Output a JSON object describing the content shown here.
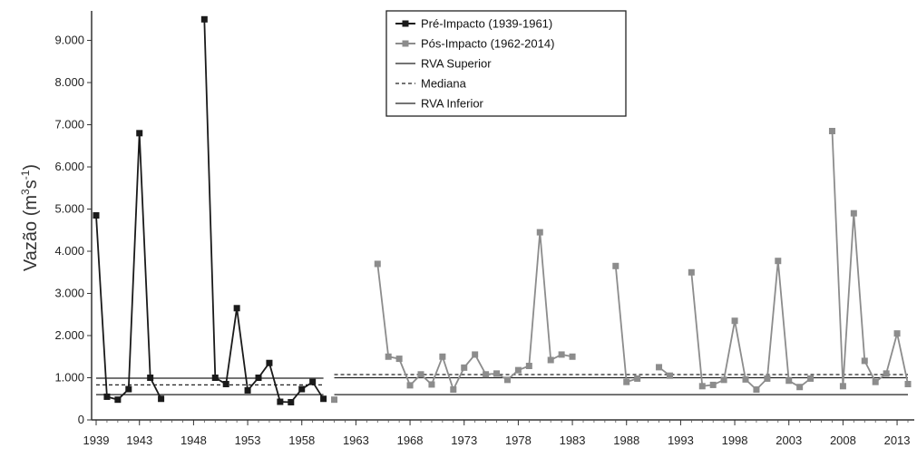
{
  "chart_data": {
    "type": "line",
    "title": "",
    "xlabel": "",
    "ylabel": "Vazão (m³s⁻¹)",
    "ylabel_parts": {
      "main": "Vazão (m",
      "sup1": "3",
      "mid": "s",
      "sup2": "-1",
      "end": ")"
    },
    "xlim": [
      1939,
      2014
    ],
    "ylim": [
      0,
      9700
    ],
    "yticks": [
      0,
      1000,
      2000,
      3000,
      4000,
      5000,
      6000,
      7000,
      8000,
      9000
    ],
    "ytick_labels": [
      "0",
      "1.000",
      "2.000",
      "3.000",
      "4.000",
      "5.000",
      "6.000",
      "7.000",
      "8.000",
      "9.000"
    ],
    "xticks": [
      1939,
      1943,
      1948,
      1953,
      1958,
      1963,
      1968,
      1973,
      1978,
      1983,
      1988,
      1993,
      1998,
      2003,
      2008,
      2013
    ],
    "legend": {
      "position": "top-center",
      "entries": [
        "Pré-Impacto (1939-1961)",
        "Pós-Impacto (1962-2014)",
        "RVA Superior",
        "Mediana",
        "RVA Inferior"
      ]
    },
    "colors": {
      "pre": "#1a1a1a",
      "pos": "#8c8c8c",
      "rva": "#222222"
    },
    "series": [
      {
        "name": "Pré-Impacto (1939-1961)",
        "segments": [
          [
            [
              1939,
              4850
            ],
            [
              1940,
              550
            ],
            [
              1941,
              480
            ],
            [
              1942,
              730
            ],
            [
              1943,
              6800
            ],
            [
              1944,
              1000
            ],
            [
              1945,
              500
            ]
          ],
          [
            [
              1949,
              9500
            ],
            [
              1950,
              1000
            ],
            [
              1951,
              850
            ],
            [
              1952,
              2650
            ],
            [
              1953,
              700
            ],
            [
              1954,
              1000
            ],
            [
              1955,
              1350
            ],
            [
              1956,
              430
            ],
            [
              1957,
              420
            ],
            [
              1958,
              730
            ],
            [
              1959,
              900
            ],
            [
              1960,
              500
            ]
          ]
        ]
      },
      {
        "name": "Pós-Impacto (1962-2014)",
        "segments": [
          [
            [
              1961,
              480
            ]
          ],
          [
            [
              1965,
              3700
            ],
            [
              1966,
              1500
            ],
            [
              1967,
              1450
            ],
            [
              1968,
              820
            ],
            [
              1969,
              1080
            ],
            [
              1970,
              840
            ],
            [
              1971,
              1500
            ],
            [
              1972,
              720
            ],
            [
              1973,
              1240
            ],
            [
              1974,
              1550
            ],
            [
              1975,
              1080
            ],
            [
              1976,
              1100
            ],
            [
              1977,
              950
            ],
            [
              1978,
              1180
            ],
            [
              1979,
              1280
            ],
            [
              1980,
              4450
            ],
            [
              1981,
              1420
            ],
            [
              1982,
              1550
            ],
            [
              1983,
              1500
            ]
          ],
          [
            [
              1987,
              3650
            ],
            [
              1988,
              900
            ],
            [
              1989,
              980
            ]
          ],
          [
            [
              1991,
              1250
            ],
            [
              1992,
              1050
            ]
          ],
          [
            [
              1994,
              3500
            ],
            [
              1995,
              800
            ],
            [
              1996,
              830
            ],
            [
              1997,
              950
            ],
            [
              1998,
              2350
            ],
            [
              1999,
              960
            ],
            [
              2000,
              720
            ],
            [
              2001,
              980
            ],
            [
              2002,
              3770
            ],
            [
              2003,
              930
            ],
            [
              2004,
              780
            ],
            [
              2005,
              980
            ]
          ],
          [
            [
              2007,
              6850
            ],
            [
              2008,
              800
            ],
            [
              2009,
              4900
            ],
            [
              2010,
              1400
            ],
            [
              2011,
              900
            ],
            [
              2012,
              1100
            ],
            [
              2013,
              2050
            ],
            [
              2014,
              850
            ]
          ]
        ]
      }
    ],
    "reference_lines": [
      {
        "name": "RVA Superior",
        "period": "pre",
        "x": [
          1939,
          1960
        ],
        "y": 990,
        "style": "solid"
      },
      {
        "name": "Mediana",
        "period": "pre",
        "x": [
          1939,
          1960
        ],
        "y": 830,
        "style": "dashed"
      },
      {
        "name": "RVA Inferior",
        "period": "pre",
        "x": [
          1939,
          1960
        ],
        "y": 600,
        "style": "solid"
      },
      {
        "name": "RVA Superior",
        "period": "pos",
        "x": [
          1961,
          2014
        ],
        "y": 1000,
        "style": "solid"
      },
      {
        "name": "Mediana",
        "period": "pos",
        "x": [
          1961,
          2014
        ],
        "y": 1075,
        "style": "dashed"
      },
      {
        "name": "RVA Inferior",
        "period": "pos",
        "x": [
          1961,
          2014
        ],
        "y": 600,
        "style": "solid"
      }
    ]
  }
}
